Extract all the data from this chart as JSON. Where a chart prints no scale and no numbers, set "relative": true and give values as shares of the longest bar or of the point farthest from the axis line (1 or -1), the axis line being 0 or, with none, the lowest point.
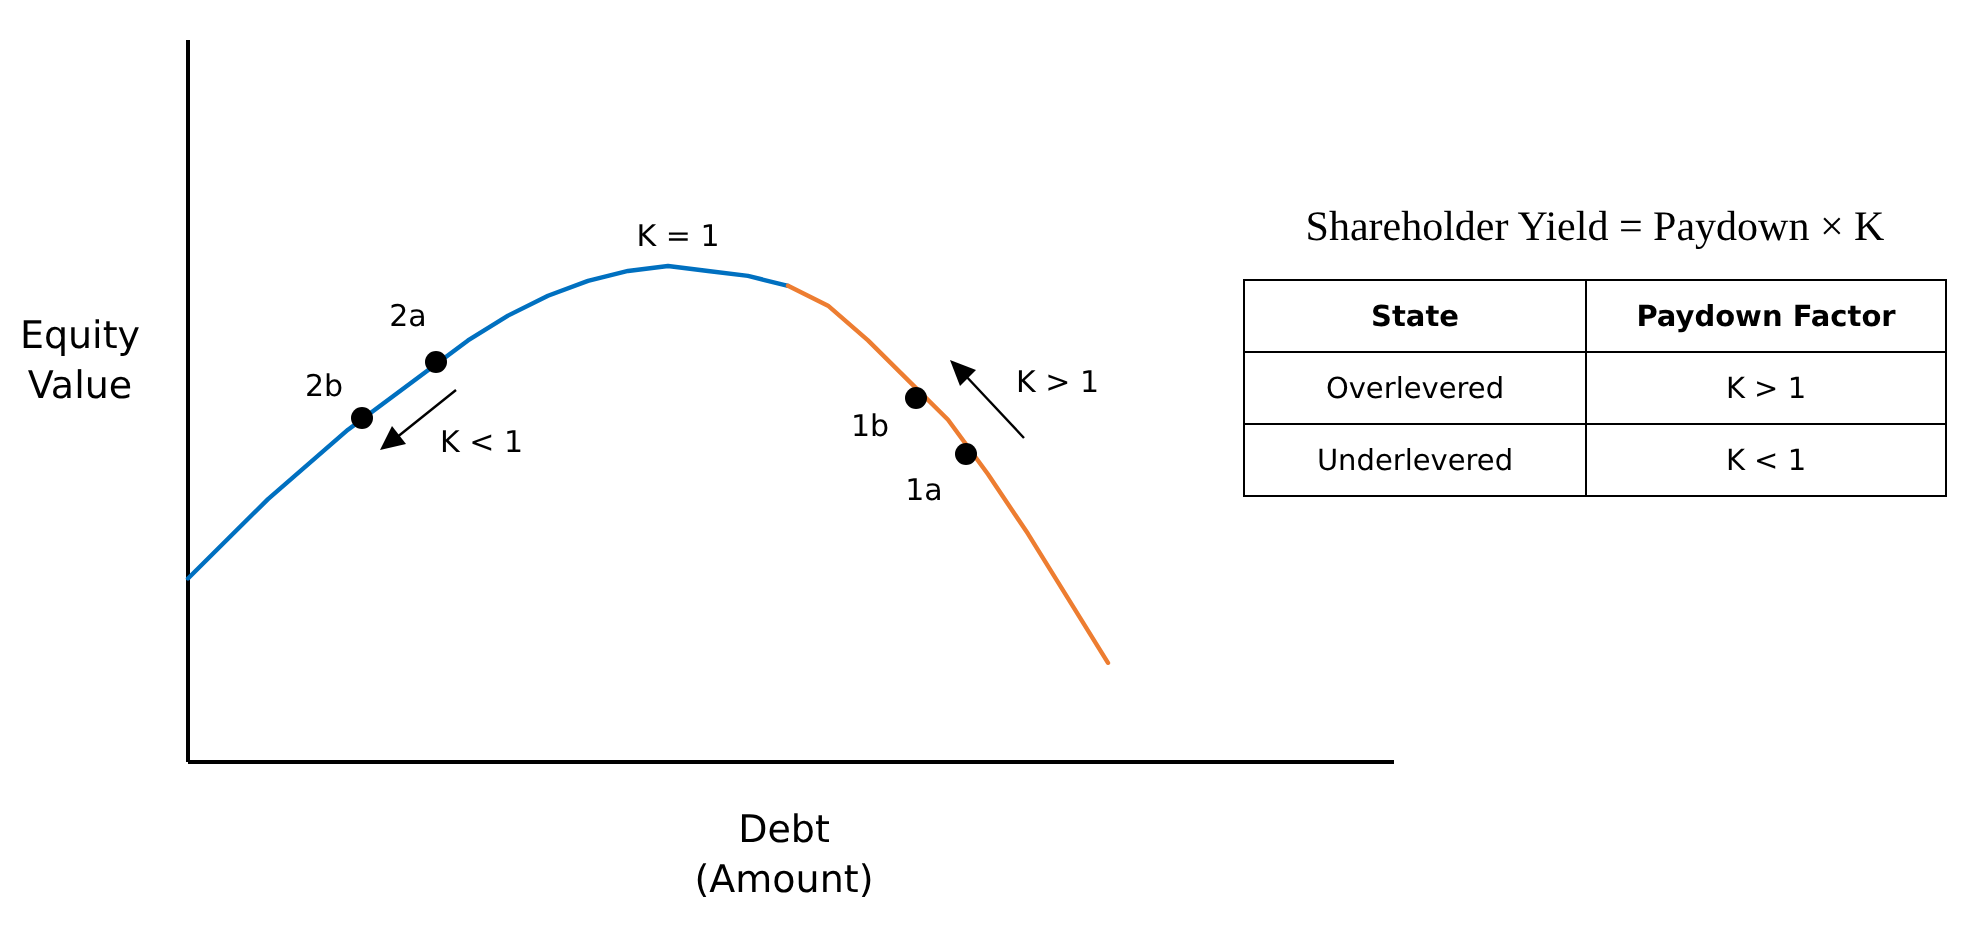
{
  "chart_data": [
    {
      "type": "line",
      "relative": true,
      "xlabel": "Debt\n(Amount)",
      "ylabel": "Equity\nValue",
      "categories": [
        null,
        null,
        null,
        null,
        null,
        null,
        null,
        null,
        null,
        null,
        null,
        null,
        null,
        null,
        null,
        null,
        null,
        null,
        null,
        null,
        null,
        null,
        null,
        null
      ],
      "series": [
        {
          "color": "#0070c0",
          "values": [
            0.37,
            0.45,
            0.53,
            0.6,
            0.67,
            0.73,
            0.79,
            0.85,
            0.9,
            0.94,
            0.97,
            0.99,
            1.0,
            0.99,
            0.98,
            0.96,
            null,
            null,
            null,
            null,
            null,
            null,
            null,
            null
          ]
        },
        {
          "color": "#ed7d31",
          "values": [
            null,
            null,
            null,
            null,
            null,
            null,
            null,
            null,
            null,
            null,
            null,
            null,
            null,
            null,
            null,
            0.96,
            0.92,
            0.85,
            0.77,
            0.69,
            0.58,
            0.46,
            0.33,
            0.2
          ]
        }
      ],
      "annotations": [
        "K = 1",
        "2b",
        "2a",
        "1b",
        "1a",
        "K < 1",
        "K > 1"
      ]
    },
    {
      "type": "other",
      "title": "Shareholder Yield = Paydown × K",
      "categories": [
        "State",
        "Paydown Factor"
      ],
      "cell_labels": [
        [
          "Overlevered",
          "K > 1"
        ],
        [
          "Underlevered",
          "K < 1"
        ]
      ]
    }
  ]
}
